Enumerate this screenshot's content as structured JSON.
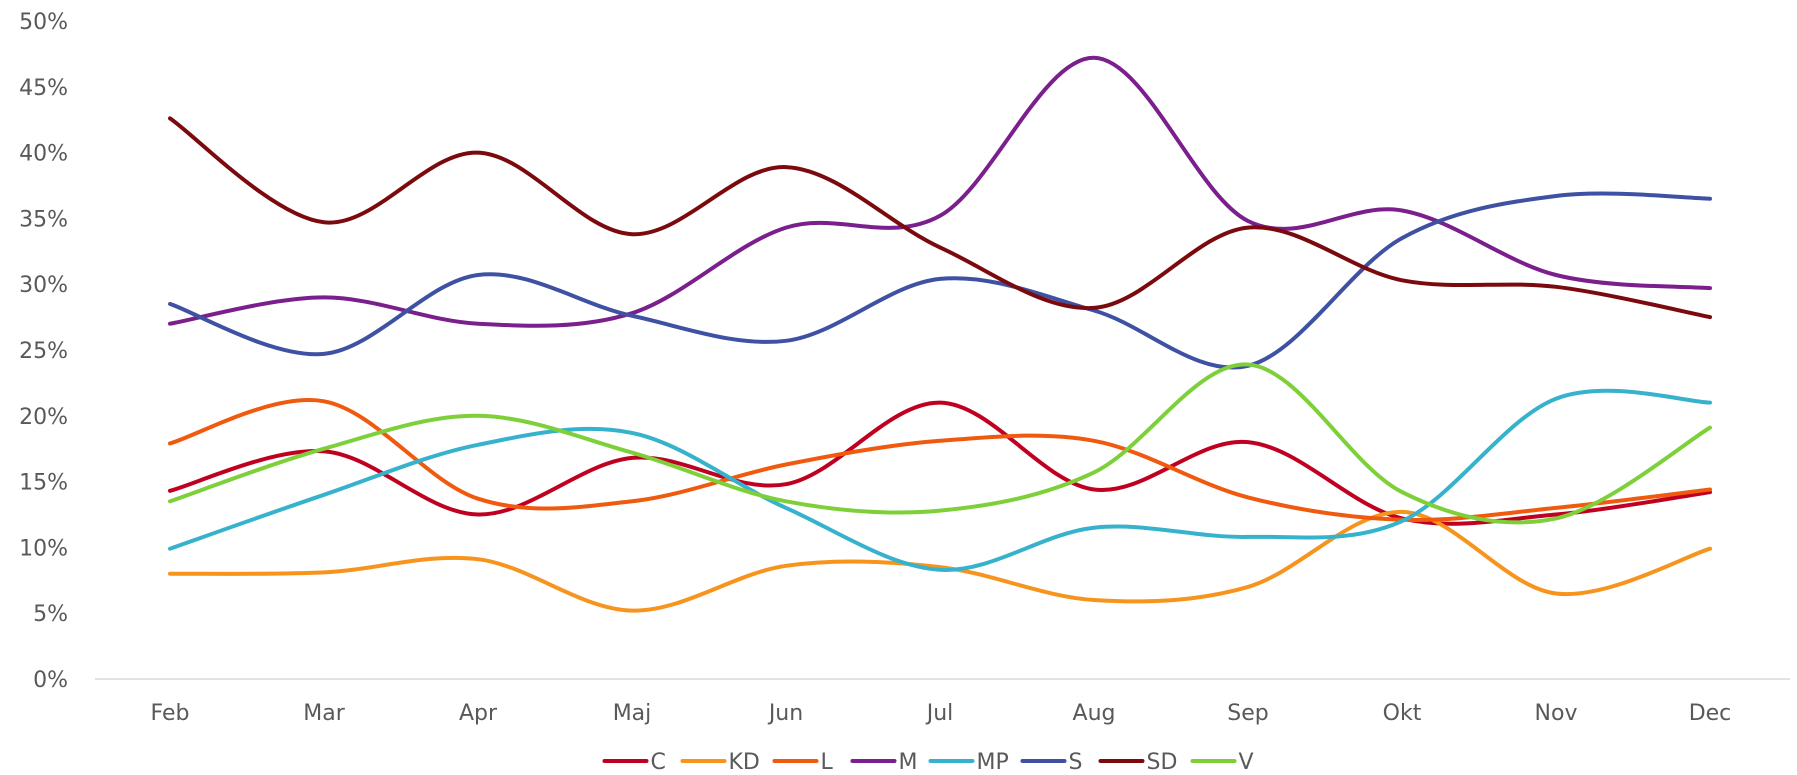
{
  "chart_data": {
    "type": "line",
    "smooth": true,
    "categories": [
      "Feb",
      "Mar",
      "Apr",
      "Maj",
      "Jun",
      "Jul",
      "Aug",
      "Sep",
      "Okt",
      "Nov",
      "Dec"
    ],
    "ylim": [
      0,
      50
    ],
    "yticks": [
      0,
      5,
      10,
      15,
      20,
      25,
      30,
      35,
      40,
      45,
      50
    ],
    "ytick_format": "{v}%",
    "grid": false,
    "legend": "bottom",
    "series": [
      {
        "name": "C",
        "color": "#c00021",
        "values": [
          14.3,
          17.3,
          12.5,
          16.8,
          14.8,
          21.0,
          14.4,
          18.0,
          12.2,
          12.5,
          14.2
        ]
      },
      {
        "name": "KD",
        "color": "#f7941d",
        "values": [
          8.0,
          8.1,
          9.1,
          5.2,
          8.6,
          8.5,
          6.0,
          7.0,
          12.7,
          6.5,
          9.9
        ]
      },
      {
        "name": "L",
        "color": "#ef5a0f",
        "values": [
          17.9,
          21.1,
          13.7,
          13.5,
          16.3,
          18.1,
          18.1,
          13.8,
          12.1,
          13.0,
          14.4
        ]
      },
      {
        "name": "M",
        "color": "#7a1f8c",
        "values": [
          27.0,
          29.0,
          27.0,
          27.8,
          34.3,
          35.2,
          47.2,
          34.8,
          35.6,
          30.7,
          29.7
        ]
      },
      {
        "name": "MP",
        "color": "#37b2cc",
        "values": [
          9.9,
          14.0,
          17.8,
          18.7,
          13.0,
          8.3,
          11.5,
          10.8,
          12.0,
          21.3,
          21.0
        ]
      },
      {
        "name": "S",
        "color": "#3f51a2",
        "values": [
          28.5,
          24.7,
          30.7,
          27.6,
          25.7,
          30.4,
          28.0,
          23.8,
          33.5,
          36.7,
          36.5
        ]
      },
      {
        "name": "SD",
        "color": "#7b0a0e",
        "values": [
          42.6,
          34.7,
          40.0,
          33.8,
          38.9,
          32.8,
          28.2,
          34.3,
          30.3,
          29.8,
          27.5
        ]
      },
      {
        "name": "V",
        "color": "#7ed03a",
        "values": [
          13.5,
          17.5,
          20.0,
          17.2,
          13.5,
          12.8,
          15.7,
          23.9,
          14.2,
          12.2,
          19.1
        ]
      }
    ]
  }
}
